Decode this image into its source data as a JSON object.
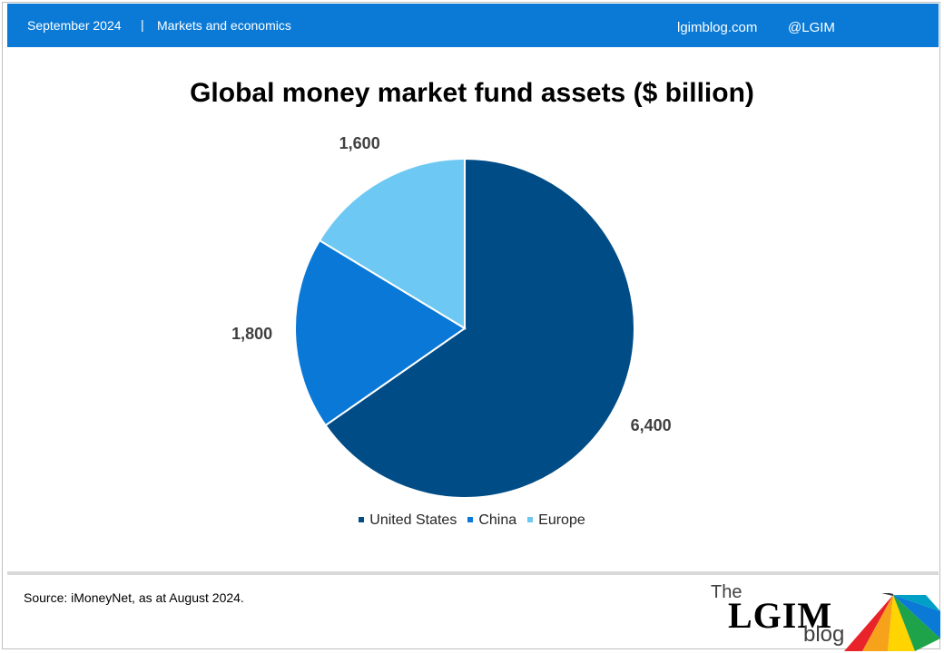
{
  "header": {
    "date": "September 2024",
    "separator": "|",
    "topic": "Markets and economics",
    "site": "lgimblog.com",
    "handle": "@LGIM"
  },
  "chart_data": {
    "type": "pie",
    "title": "Global money market fund assets ($ billion)",
    "categories": [
      "United States",
      "China",
      "Europe"
    ],
    "values": [
      6400,
      1800,
      1600
    ],
    "value_labels": [
      "6,400",
      "1,800",
      "1,600"
    ],
    "colors": [
      "#004c86",
      "#0a78d6",
      "#6dc9f3"
    ],
    "legend_position": "bottom",
    "start": "top, clockwise"
  },
  "footer": {
    "source": "Source: iMoneyNet,  as at August 2024."
  },
  "logo": {
    "the": "The",
    "name": "LGIM",
    "blog": "blog"
  }
}
